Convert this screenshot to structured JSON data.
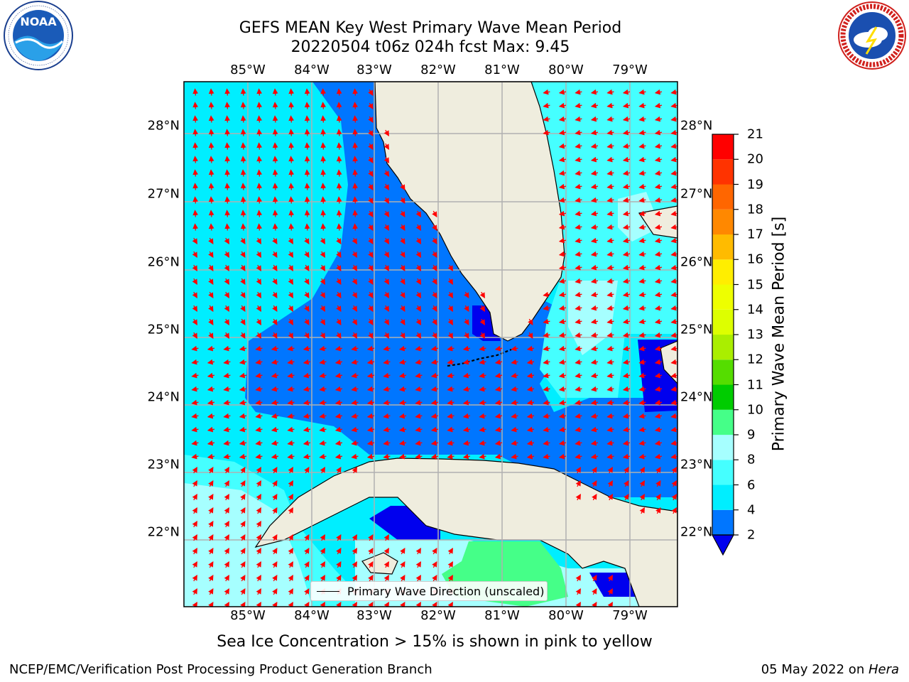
{
  "header": {
    "title_line1": "GEFS MEAN Key West Primary Wave Mean Period",
    "title_line2": "20220504 t06z 024h fcst   Max: 9.45"
  },
  "logos": {
    "left": {
      "icon": "noaa-logo-icon",
      "text": "NOAA",
      "ring_text": "NATIONAL OCEANIC AND ATMOSPHERIC ADMINISTRATION · U.S. DEPARTMENT OF COMMERCE"
    },
    "right": {
      "icon": "nws-logo-icon",
      "ring_text": "NATIONAL WEATHER SERVICE"
    }
  },
  "map": {
    "lon_labels": [
      "85°W",
      "84°W",
      "83°W",
      "82°W",
      "81°W",
      "80°W",
      "79°W"
    ],
    "lat_labels": [
      "28°N",
      "27°N",
      "26°N",
      "25°N",
      "24°N",
      "23°N",
      "22°N"
    ],
    "legend_label": "Primary Wave Direction (unscaled)",
    "colors": {
      "land": "#efedde",
      "coast": "#000000",
      "grid": "#b0b0b0",
      "arrow": "#ff0000"
    }
  },
  "colorbar": {
    "label": "Primary Wave Mean Period [s]",
    "ticks": [
      "21",
      "20",
      "19",
      "18",
      "17",
      "16",
      "15",
      "14",
      "13",
      "12",
      "11",
      "10",
      "9",
      "8",
      "6",
      "4",
      "2"
    ],
    "bins": [
      {
        "from": "2",
        "to": "4",
        "color": "#0076ff"
      },
      {
        "from": "4",
        "to": "6",
        "color": "#00eeff"
      },
      {
        "from": "6",
        "to": "8",
        "color": "#45ffff"
      },
      {
        "from": "8",
        "to": "9",
        "color": "#a6ffff"
      },
      {
        "from": "9",
        "to": "10",
        "color": "#45ff88"
      },
      {
        "from": "10",
        "to": "11",
        "color": "#00cc00"
      },
      {
        "from": "11",
        "to": "12",
        "color": "#55dd00"
      },
      {
        "from": "12",
        "to": "13",
        "color": "#aaee00"
      },
      {
        "from": "13",
        "to": "14",
        "color": "#ddff00"
      },
      {
        "from": "14",
        "to": "15",
        "color": "#eeff00"
      },
      {
        "from": "15",
        "to": "16",
        "color": "#ffee00"
      },
      {
        "from": "16",
        "to": "17",
        "color": "#ffbb00"
      },
      {
        "from": "17",
        "to": "18",
        "color": "#ff8800"
      },
      {
        "from": "18",
        "to": "19",
        "color": "#ff6600"
      },
      {
        "from": "19",
        "to": "20",
        "color": "#ff3300"
      },
      {
        "from": "20",
        "to": "21",
        "color": "#ff0000"
      }
    ],
    "under_color": "#0000ee"
  },
  "note": "Sea Ice Concentration > 15% is shown in pink to yellow",
  "footer": {
    "left": "NCEP/EMC/Verification Post Processing Product Generation Branch",
    "right_prefix": "05 May 2022 on ",
    "right_machine": "Hera"
  }
}
